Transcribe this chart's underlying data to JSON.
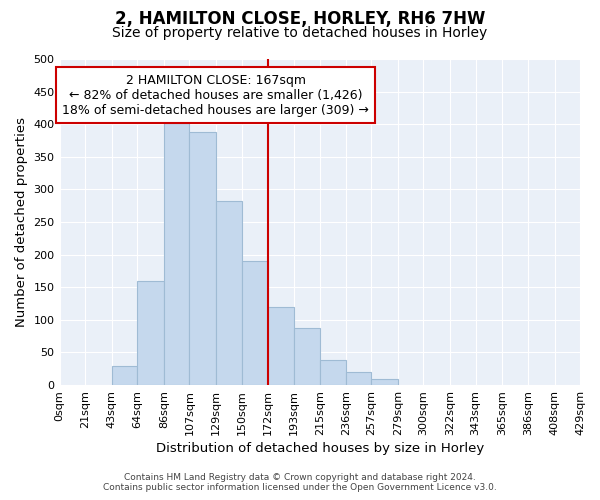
{
  "title": "2, HAMILTON CLOSE, HORLEY, RH6 7HW",
  "subtitle": "Size of property relative to detached houses in Horley",
  "xlabel": "Distribution of detached houses by size in Horley",
  "ylabel": "Number of detached properties",
  "bin_edges": [
    0,
    21,
    43,
    64,
    86,
    107,
    129,
    150,
    172,
    193,
    215,
    236,
    257,
    279,
    300,
    322,
    343,
    365,
    386,
    408,
    429
  ],
  "bin_labels": [
    "0sqm",
    "21sqm",
    "43sqm",
    "64sqm",
    "86sqm",
    "107sqm",
    "129sqm",
    "150sqm",
    "172sqm",
    "193sqm",
    "215sqm",
    "236sqm",
    "257sqm",
    "279sqm",
    "300sqm",
    "322sqm",
    "343sqm",
    "365sqm",
    "386sqm",
    "408sqm",
    "429sqm"
  ],
  "counts": [
    0,
    0,
    30,
    160,
    410,
    388,
    283,
    190,
    120,
    87,
    38,
    20,
    10,
    0,
    0,
    0,
    0,
    0,
    0,
    0
  ],
  "bar_color": "#c5d8ed",
  "bar_edge_color": "#9fbbd4",
  "vline_x": 172,
  "vline_color": "#cc0000",
  "annotation_title": "2 HAMILTON CLOSE: 167sqm",
  "annotation_line1": "← 82% of detached houses are smaller (1,426)",
  "annotation_line2": "18% of semi-detached houses are larger (309) →",
  "annotation_box_color": "#ffffff",
  "annotation_box_edge": "#cc0000",
  "ylim": [
    0,
    500
  ],
  "footer1": "Contains HM Land Registry data © Crown copyright and database right 2024.",
  "footer2": "Contains public sector information licensed under the Open Government Licence v3.0.",
  "background_color": "#ffffff",
  "plot_bg_color": "#eaf0f8",
  "grid_color": "#ffffff",
  "title_fontsize": 12,
  "subtitle_fontsize": 10,
  "axis_label_fontsize": 9.5,
  "tick_fontsize": 8,
  "annotation_fontsize": 9
}
